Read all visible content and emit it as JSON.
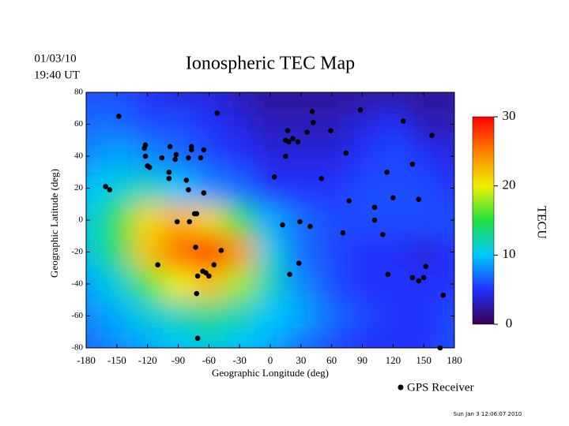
{
  "chart_data": {
    "type": "heatmap",
    "date": "01/03/10",
    "time": "19:40 UT",
    "title": "Ionospheric TEC Map",
    "xlabel": "Geographic Longitude (deg)",
    "ylabel": "Geographic Latitude (deg)",
    "xlim": [
      -180,
      180
    ],
    "ylim": [
      -80,
      80
    ],
    "xticks": [
      -180,
      -150,
      -120,
      -90,
      -60,
      -30,
      0,
      30,
      60,
      90,
      120,
      150,
      180
    ],
    "yticks": [
      -80,
      -60,
      -40,
      -20,
      0,
      20,
      40,
      60,
      80
    ],
    "x": [
      -180,
      -150,
      -120,
      -90,
      -60,
      -30,
      0,
      30,
      60,
      90,
      120,
      150,
      180
    ],
    "y": [
      80,
      60,
      40,
      20,
      0,
      -20,
      -40,
      -60,
      -80
    ],
    "values": [
      [
        6,
        6,
        5,
        4,
        4,
        3,
        2,
        2,
        2,
        2,
        2,
        2,
        2
      ],
      [
        7,
        7,
        6,
        6,
        5,
        4,
        3,
        3,
        3,
        4,
        5,
        3,
        3
      ],
      [
        8,
        9,
        8,
        7,
        6,
        5,
        4,
        4,
        4,
        5,
        6,
        5,
        4
      ],
      [
        10,
        11,
        12,
        10,
        8,
        7,
        5,
        5,
        5,
        6,
        6,
        6,
        5
      ],
      [
        11,
        15,
        21,
        23,
        21,
        15,
        9,
        7,
        6,
        6,
        6,
        6,
        6
      ],
      [
        11,
        14,
        22,
        26,
        29,
        24,
        11,
        7,
        6,
        5,
        5,
        4,
        5
      ],
      [
        9,
        11,
        16,
        20,
        22,
        18,
        12,
        8,
        6,
        5,
        5,
        5,
        5
      ],
      [
        8,
        9,
        11,
        12,
        13,
        12,
        10,
        9,
        7,
        6,
        5,
        5,
        6
      ],
      [
        7,
        8,
        9,
        10,
        11,
        10,
        9,
        7,
        6,
        5,
        5,
        5,
        6
      ]
    ],
    "colorbar": {
      "label": "TECU",
      "lim": [
        0,
        30
      ],
      "ticks": [
        0,
        10,
        20,
        30
      ]
    },
    "points": {
      "name": "GPS Receiver",
      "color": "#000000",
      "x": [
        -148,
        -52,
        -122,
        -123,
        -122,
        -120,
        -118,
        -106,
        -98,
        -93,
        -92,
        -99,
        -99,
        -82,
        -80,
        -77,
        -77,
        -65,
        -68,
        -80,
        -65,
        -161,
        -157,
        -91,
        -79,
        -74,
        -72,
        -110,
        -73,
        -48,
        -55,
        -63,
        -60,
        -66,
        -71,
        -72,
        -71,
        4,
        15,
        15,
        17,
        18,
        22,
        27,
        41,
        42,
        36,
        59,
        88,
        74,
        50,
        77,
        71,
        102,
        110,
        102,
        114,
        120,
        145,
        130,
        158,
        139,
        12,
        29,
        39,
        28,
        19,
        115,
        139,
        145,
        150,
        152,
        169,
        166
      ],
      "y": [
        65,
        67,
        47,
        45,
        40,
        34,
        33,
        39,
        46,
        38,
        41,
        26,
        30,
        25,
        39,
        44,
        46,
        44,
        39,
        19,
        17,
        21,
        19,
        -1,
        -1,
        4,
        4,
        -28,
        -17,
        -19,
        -28,
        -33,
        -35,
        -32,
        -35,
        -46,
        -74,
        27,
        50,
        40,
        56,
        49,
        51,
        49,
        68,
        61,
        55,
        56,
        69,
        42,
        26,
        12,
        -8,
        0,
        -9,
        8,
        30,
        14,
        13,
        62,
        53,
        35,
        -3,
        -1,
        -4,
        -27,
        -34,
        -34,
        -36,
        -38,
        -36,
        -29,
        -47,
        -80
      ]
    },
    "footer": "Sun Jan  3 12:06:07 2010"
  }
}
